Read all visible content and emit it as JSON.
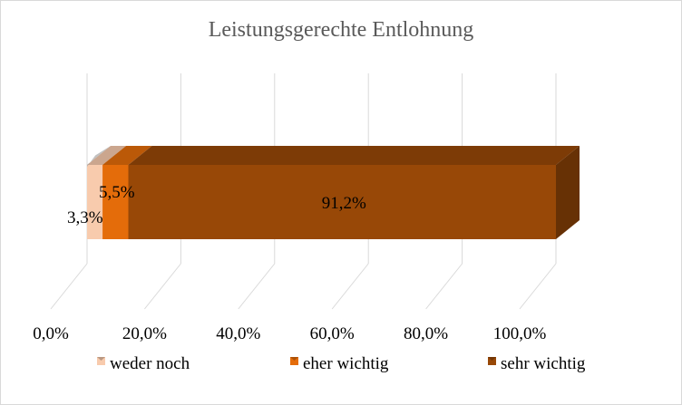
{
  "chart_data": {
    "type": "bar",
    "orientation": "horizontal",
    "stacked": "100%",
    "three_d": true,
    "title": "Leistungsgerechte Entlohnung",
    "categories": [
      ""
    ],
    "series": [
      {
        "name": "weder noch",
        "values": [
          3.3
        ],
        "label": "3,3%",
        "color": "#f8cbad"
      },
      {
        "name": "eher wichtig",
        "values": [
          5.5
        ],
        "label": "5,5%",
        "color": "#e46c0a"
      },
      {
        "name": "sehr wichtig",
        "values": [
          91.2
        ],
        "label": "91,2%",
        "color": "#984807"
      }
    ],
    "x_ticks": [
      "0,0%",
      "20,0%",
      "40,0%",
      "60,0%",
      "80,0%",
      "100,0%"
    ],
    "xlim": [
      0,
      100
    ],
    "grid": true,
    "legend_position": "bottom"
  }
}
